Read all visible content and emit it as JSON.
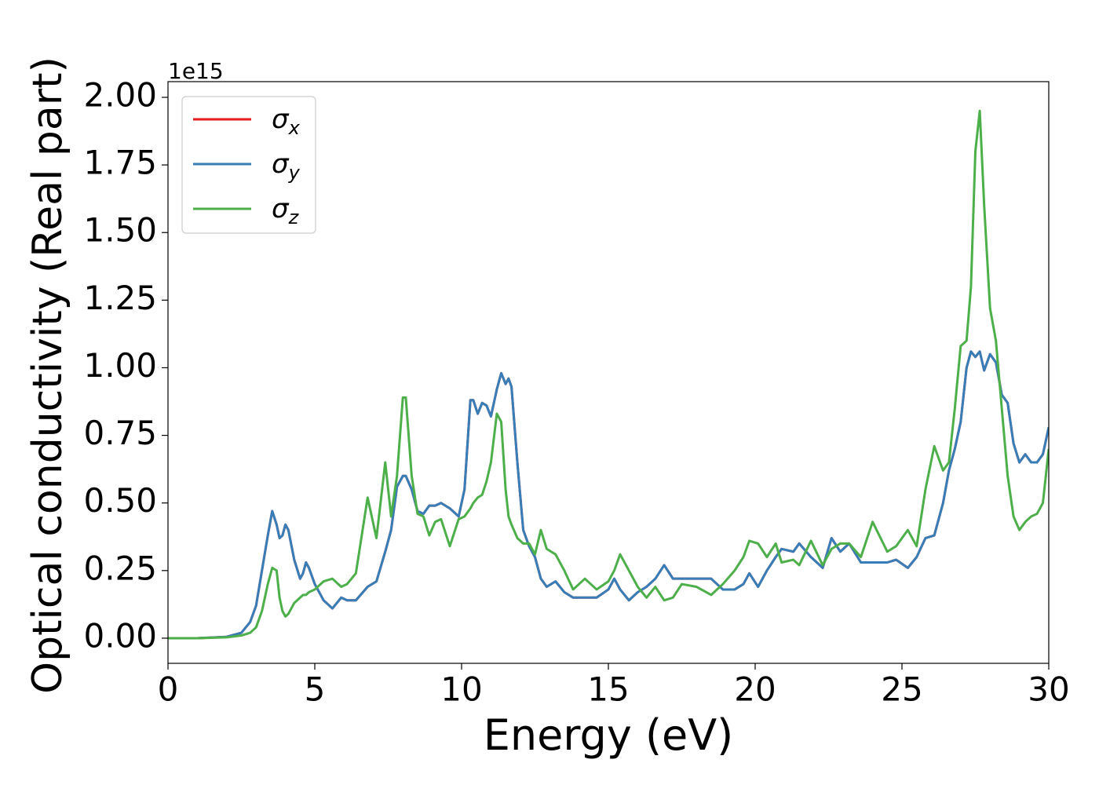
{
  "chart_data": {
    "type": "line",
    "x_label": "Energy (eV)",
    "y_label": "Optical conductivity (Real part)",
    "y_offset_label": "1e15",
    "xlim": [
      0,
      30
    ],
    "ylim": [
      -0.093,
      2.058
    ],
    "xticks": [
      0,
      5,
      10,
      15,
      20,
      25,
      30
    ],
    "yticks": [
      {
        "value": 0,
        "label": "0.00"
      },
      {
        "value": 0.25,
        "label": "0.25"
      },
      {
        "value": 0.5,
        "label": "0.50"
      },
      {
        "value": 0.75,
        "label": "0.75"
      },
      {
        "value": 1,
        "label": "1.00"
      },
      {
        "value": 1.25,
        "label": "1.25"
      },
      {
        "value": 1.5,
        "label": "1.50"
      },
      {
        "value": 1.75,
        "label": "1.75"
      },
      {
        "value": 2,
        "label": "2.00"
      }
    ],
    "legend": "upper left",
    "grid": false,
    "x": [
      0,
      1,
      2,
      2.5,
      2.8,
      3.0,
      3.2,
      3.4,
      3.55,
      3.7,
      3.8,
      3.9,
      4.0,
      4.1,
      4.3,
      4.5,
      4.6,
      4.7,
      4.8,
      5.0,
      5.3,
      5.6,
      5.9,
      6.1,
      6.4,
      6.8,
      7.1,
      7.4,
      7.6,
      7.8,
      8.0,
      8.1,
      8.3,
      8.5,
      8.7,
      8.9,
      9.1,
      9.3,
      9.6,
      9.9,
      10.1,
      10.3,
      10.4,
      10.55,
      10.7,
      10.85,
      11.0,
      11.2,
      11.35,
      11.5,
      11.6,
      11.7,
      11.9,
      12.1,
      12.3,
      12.5,
      12.7,
      12.9,
      13.2,
      13.5,
      13.8,
      14.2,
      14.6,
      15.0,
      15.2,
      15.4,
      15.7,
      16.0,
      16.3,
      16.6,
      16.9,
      17.2,
      17.5,
      18.0,
      18.5,
      18.9,
      19.3,
      19.6,
      19.8,
      20.1,
      20.4,
      20.7,
      20.9,
      21.3,
      21.5,
      21.9,
      22.3,
      22.6,
      22.9,
      23.2,
      23.6,
      24.0,
      24.5,
      24.8,
      25.2,
      25.5,
      25.8,
      26.1,
      26.4,
      26.6,
      26.8,
      27.0,
      27.2,
      27.35,
      27.5,
      27.65,
      27.8,
      28.0,
      28.2,
      28.4,
      28.6,
      28.8,
      29.0,
      29.2,
      29.4,
      29.6,
      29.8,
      30.0
    ],
    "series": [
      {
        "name": "σx",
        "color": "#e41a1c",
        "values": [
          0,
          0,
          0.005,
          0.02,
          0.06,
          0.12,
          0.25,
          0.38,
          0.47,
          0.42,
          0.37,
          0.38,
          0.42,
          0.4,
          0.29,
          0.22,
          0.24,
          0.28,
          0.26,
          0.2,
          0.14,
          0.11,
          0.15,
          0.14,
          0.14,
          0.19,
          0.21,
          0.32,
          0.4,
          0.56,
          0.6,
          0.6,
          0.55,
          0.47,
          0.46,
          0.49,
          0.49,
          0.5,
          0.48,
          0.45,
          0.55,
          0.88,
          0.88,
          0.83,
          0.87,
          0.86,
          0.82,
          0.92,
          0.98,
          0.94,
          0.96,
          0.93,
          0.65,
          0.4,
          0.34,
          0.3,
          0.22,
          0.19,
          0.21,
          0.17,
          0.15,
          0.15,
          0.15,
          0.18,
          0.22,
          0.18,
          0.14,
          0.17,
          0.19,
          0.22,
          0.27,
          0.22,
          0.22,
          0.22,
          0.22,
          0.18,
          0.18,
          0.2,
          0.24,
          0.19,
          0.25,
          0.3,
          0.33,
          0.32,
          0.35,
          0.3,
          0.26,
          0.37,
          0.32,
          0.35,
          0.28,
          0.28,
          0.28,
          0.29,
          0.26,
          0.3,
          0.37,
          0.38,
          0.5,
          0.62,
          0.7,
          0.8,
          1.0,
          1.06,
          1.04,
          1.06,
          0.99,
          1.05,
          1.02,
          0.9,
          0.87,
          0.72,
          0.65,
          0.68,
          0.65,
          0.65,
          0.68,
          0.78
        ]
      },
      {
        "name": "σy",
        "color": "#377eb8",
        "values": [
          0,
          0,
          0.005,
          0.02,
          0.06,
          0.12,
          0.25,
          0.38,
          0.47,
          0.42,
          0.37,
          0.38,
          0.42,
          0.4,
          0.29,
          0.22,
          0.24,
          0.28,
          0.26,
          0.2,
          0.14,
          0.11,
          0.15,
          0.14,
          0.14,
          0.19,
          0.21,
          0.32,
          0.4,
          0.56,
          0.6,
          0.6,
          0.55,
          0.47,
          0.46,
          0.49,
          0.49,
          0.5,
          0.48,
          0.45,
          0.55,
          0.88,
          0.88,
          0.83,
          0.87,
          0.86,
          0.82,
          0.92,
          0.98,
          0.94,
          0.96,
          0.93,
          0.65,
          0.4,
          0.34,
          0.3,
          0.22,
          0.19,
          0.21,
          0.17,
          0.15,
          0.15,
          0.15,
          0.18,
          0.22,
          0.18,
          0.14,
          0.17,
          0.19,
          0.22,
          0.27,
          0.22,
          0.22,
          0.22,
          0.22,
          0.18,
          0.18,
          0.2,
          0.24,
          0.19,
          0.25,
          0.3,
          0.33,
          0.32,
          0.35,
          0.3,
          0.26,
          0.37,
          0.32,
          0.35,
          0.28,
          0.28,
          0.28,
          0.29,
          0.26,
          0.3,
          0.37,
          0.38,
          0.5,
          0.62,
          0.7,
          0.8,
          1.0,
          1.06,
          1.04,
          1.06,
          0.99,
          1.05,
          1.02,
          0.9,
          0.87,
          0.72,
          0.65,
          0.68,
          0.65,
          0.65,
          0.68,
          0.78
        ]
      },
      {
        "name": "σz",
        "color": "#4daf4a",
        "values": [
          0,
          0,
          0.003,
          0.01,
          0.02,
          0.04,
          0.1,
          0.2,
          0.26,
          0.25,
          0.15,
          0.1,
          0.08,
          0.09,
          0.13,
          0.15,
          0.16,
          0.16,
          0.17,
          0.18,
          0.21,
          0.22,
          0.19,
          0.2,
          0.24,
          0.52,
          0.37,
          0.65,
          0.45,
          0.6,
          0.89,
          0.89,
          0.6,
          0.46,
          0.45,
          0.38,
          0.43,
          0.44,
          0.34,
          0.44,
          0.45,
          0.48,
          0.5,
          0.52,
          0.53,
          0.58,
          0.65,
          0.83,
          0.8,
          0.55,
          0.45,
          0.42,
          0.37,
          0.35,
          0.35,
          0.31,
          0.4,
          0.33,
          0.31,
          0.25,
          0.18,
          0.22,
          0.18,
          0.21,
          0.25,
          0.31,
          0.25,
          0.19,
          0.15,
          0.19,
          0.14,
          0.15,
          0.2,
          0.19,
          0.16,
          0.2,
          0.25,
          0.3,
          0.36,
          0.35,
          0.3,
          0.35,
          0.28,
          0.29,
          0.27,
          0.36,
          0.27,
          0.33,
          0.35,
          0.35,
          0.3,
          0.43,
          0.32,
          0.34,
          0.4,
          0.34,
          0.55,
          0.71,
          0.62,
          0.65,
          0.85,
          1.08,
          1.1,
          1.3,
          1.8,
          1.95,
          1.6,
          1.22,
          1.1,
          0.85,
          0.6,
          0.45,
          0.4,
          0.43,
          0.45,
          0.46,
          0.5,
          0.7
        ]
      }
    ]
  }
}
